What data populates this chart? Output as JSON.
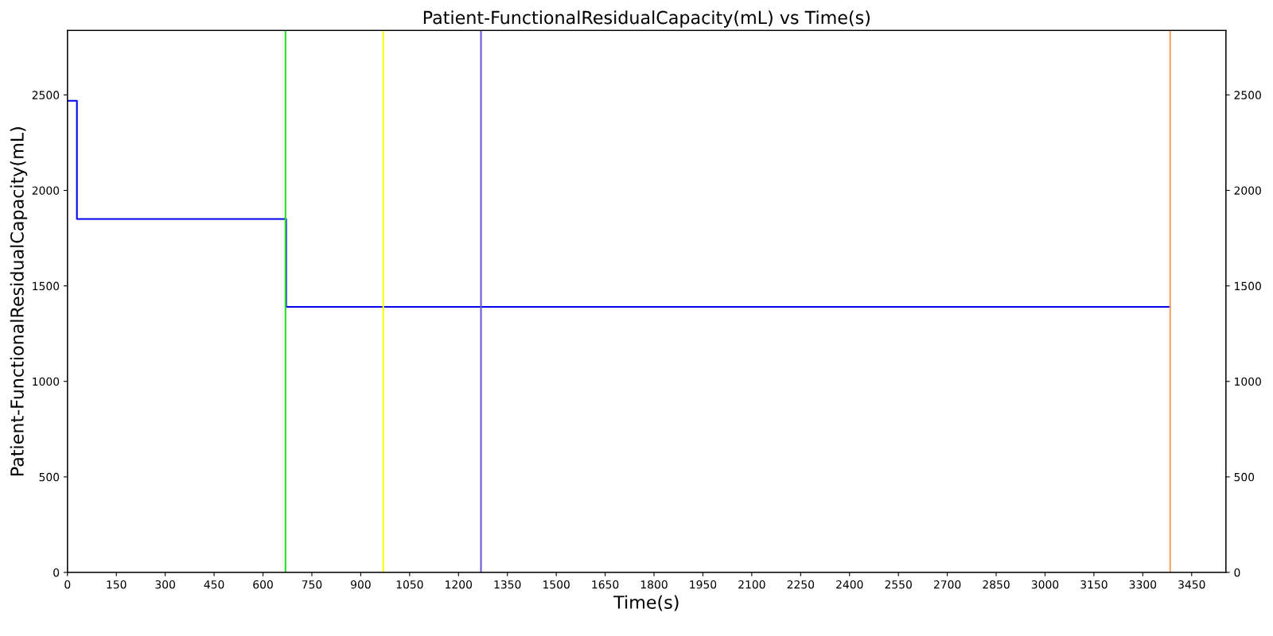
{
  "chart_data": {
    "type": "step",
    "title": "Patient-FunctionalResidualCapacity(mL) vs Time(s)",
    "xlabel": "Time(s)",
    "ylabel": "Patient-FunctionalResidualCapacity(mL)",
    "x": [
      0,
      29,
      671,
      3384
    ],
    "series": [
      {
        "color": "#0000ee",
        "values": [
          2469,
          1850,
          1390,
          1390
        ]
      }
    ],
    "xlim": [
      0,
      3555
    ],
    "xticks": [
      0,
      150,
      300,
      450,
      600,
      750,
      900,
      1050,
      1200,
      1350,
      1500,
      1650,
      1800,
      1950,
      2100,
      2250,
      2400,
      2550,
      2700,
      2850,
      3000,
      3150,
      3300,
      3450
    ],
    "ylim": [
      0,
      2837
    ],
    "yticks": [
      0,
      500,
      1000,
      1500,
      2000,
      2500
    ],
    "y2lim": [
      0,
      2837
    ],
    "y2ticks": [
      0,
      500,
      1000,
      1500,
      2000,
      2500
    ],
    "ref_lines": [
      {
        "axis": "x",
        "value": 669,
        "color": "#22dd22"
      },
      {
        "axis": "x",
        "value": 969,
        "color": "#ffff00"
      },
      {
        "axis": "x",
        "value": 1269,
        "color": "#6a5acd"
      },
      {
        "axis": "x",
        "value": 3384,
        "color": "#f4a460"
      }
    ],
    "grid": false,
    "legend": false
  }
}
